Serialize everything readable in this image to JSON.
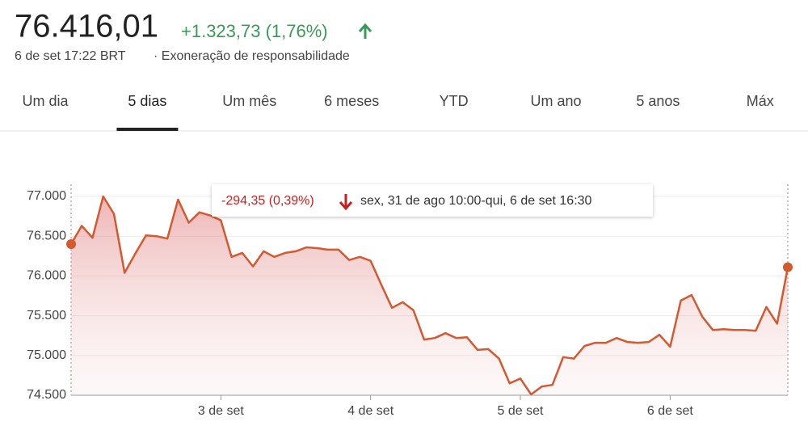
{
  "header": {
    "price": "76.416,01",
    "change": "+1.323,73 (1,76%)",
    "timestamp": "6 de set 17:22 BRT",
    "disclaimer": "· Exoneração de responsabilidade"
  },
  "tabs": [
    "Um dia",
    "5 dias",
    "Um mês",
    "6 meses",
    "YTD",
    "Um ano",
    "5 anos",
    "Máx"
  ],
  "selected_tab": 1,
  "tooltip": {
    "change": "-294,35 (0,39%)",
    "range": "sex, 31 de ago 10:00-qui, 6 de set 16:30"
  },
  "chart_data": {
    "type": "area",
    "color": "#d5592f",
    "categories": [
      null,
      null,
      null,
      null,
      null,
      null,
      null,
      null,
      null,
      null,
      null,
      null,
      null,
      null,
      "3 de set",
      null,
      null,
      null,
      null,
      null,
      null,
      null,
      null,
      null,
      null,
      null,
      null,
      null,
      "4 de set",
      null,
      null,
      null,
      null,
      null,
      null,
      null,
      null,
      null,
      null,
      null,
      null,
      null,
      "5 de set",
      null,
      null,
      null,
      null,
      null,
      null,
      null,
      null,
      null,
      null,
      null,
      null,
      null,
      "6 de set",
      null,
      null,
      null,
      null,
      null,
      null,
      null,
      null,
      null,
      null,
      null
    ],
    "values": [
      76400,
      76630,
      76480,
      77000,
      76780,
      76040,
      76280,
      76510,
      76500,
      76470,
      76960,
      76670,
      76800,
      76760,
      76700,
      76240,
      76290,
      76120,
      76310,
      76240,
      76290,
      76310,
      76360,
      76350,
      76330,
      76330,
      76200,
      76240,
      76190,
      75890,
      75600,
      75670,
      75570,
      75200,
      75220,
      75280,
      75220,
      75230,
      75070,
      75080,
      74960,
      74650,
      74710,
      74510,
      74610,
      74630,
      74980,
      74960,
      75120,
      75160,
      75160,
      75220,
      75170,
      75160,
      75170,
      75260,
      75110,
      75690,
      75760,
      75490,
      75320,
      75330,
      75320,
      75320,
      75310,
      75610,
      75400,
      76110
    ],
    "ylim": [
      74500,
      77000
    ],
    "yticks": [
      {
        "value": 74500,
        "label": "74.500"
      },
      {
        "value": 75000,
        "label": "75.000"
      },
      {
        "value": 75500,
        "label": "75.500"
      },
      {
        "value": 76000,
        "label": "76.000"
      },
      {
        "value": 76500,
        "label": "76.500"
      },
      {
        "value": 77000,
        "label": "77.000"
      }
    ],
    "grid": true
  }
}
